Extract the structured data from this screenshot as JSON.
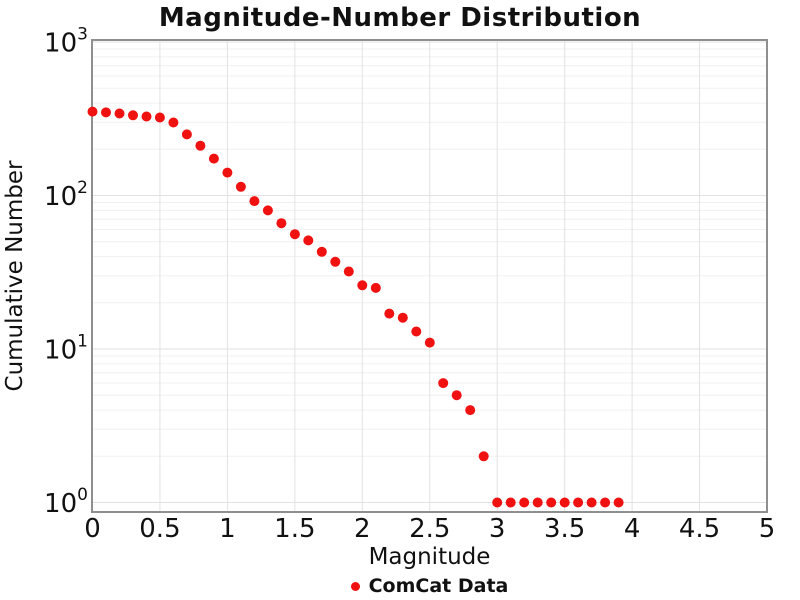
{
  "chart_data": {
    "type": "scatter",
    "title": "Magnitude-Number Distribution",
    "xlabel": "Magnitude",
    "ylabel": "Cumulative Number",
    "series": "ComCat Data",
    "marker_color": "#f01111",
    "yscale": "log",
    "xlim": [
      0,
      5
    ],
    "ylim": [
      0.87,
      1035
    ],
    "grid": true,
    "legend_position": "bottom-center",
    "x_ticks": [
      0,
      0.5,
      1,
      1.5,
      2,
      2.5,
      3,
      3.5,
      4,
      4.5,
      5
    ],
    "x_tick_labels": [
      "0",
      "0.5",
      "1",
      "1.5",
      "2",
      "2.5",
      "3",
      "3.5",
      "4",
      "4.5",
      "5"
    ],
    "y_tick_exponents": [
      "0",
      "1",
      "2",
      "3"
    ],
    "x": [
      0.0,
      0.1,
      0.2,
      0.3,
      0.4,
      0.5,
      0.6,
      0.7,
      0.8,
      0.9,
      1.0,
      1.1,
      1.2,
      1.3,
      1.4,
      1.5,
      1.6,
      1.7,
      1.8,
      1.9,
      2.0,
      2.1,
      2.2,
      2.3,
      2.4,
      2.5,
      2.6,
      2.7,
      2.8,
      2.9,
      3.0,
      3.1,
      3.2,
      3.3,
      3.4,
      3.5,
      3.6,
      3.7,
      3.8,
      3.9
    ],
    "y": [
      352,
      348,
      342,
      333,
      327,
      322,
      299,
      250,
      211,
      174,
      141,
      114,
      92,
      80,
      66,
      56,
      51,
      43,
      37,
      32,
      26,
      25,
      17,
      16,
      13,
      11,
      6,
      5,
      4,
      2,
      1,
      1,
      1,
      1,
      1,
      1,
      1,
      1,
      1,
      1
    ]
  },
  "style": {
    "spine_color": "#8f8f8f",
    "grid_major_color": "#e2e2e2",
    "grid_minor_color": "#f0f0f0",
    "text_color": "#111111"
  }
}
